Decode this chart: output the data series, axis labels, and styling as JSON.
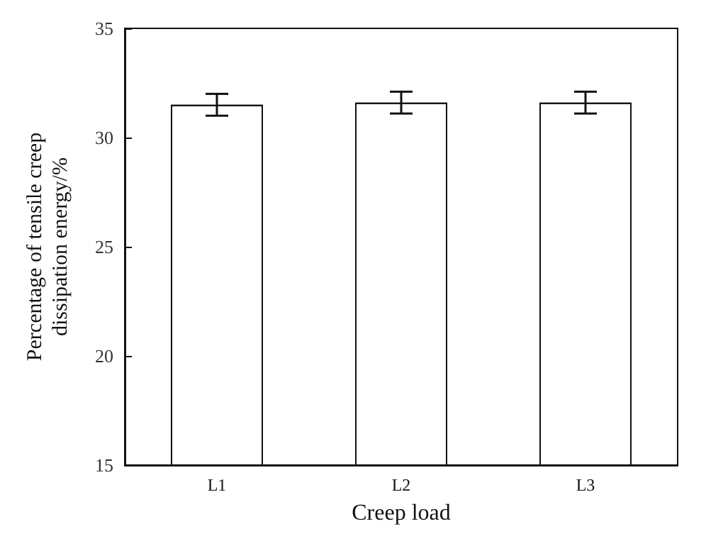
{
  "chart_data": {
    "type": "bar",
    "xlabel": "Creep load",
    "ylabel": "Percentage of tensile creep\ndissipation energy/%",
    "categories": [
      "L1",
      "L2",
      "L3"
    ],
    "values": [
      31.5,
      31.6,
      31.6
    ],
    "errors": [
      0.5,
      0.5,
      0.5
    ],
    "color": "#ffffff",
    "ylim": [
      15,
      35
    ],
    "yticks": [
      15,
      20,
      25,
      30,
      35
    ],
    "grid": false
  }
}
